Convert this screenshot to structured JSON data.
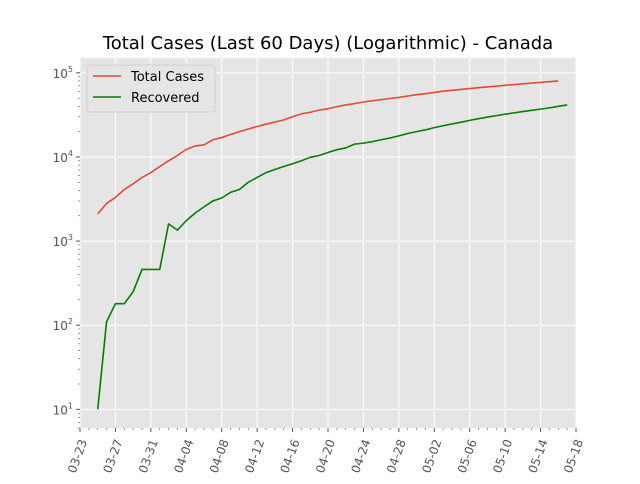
{
  "chart_data": {
    "type": "line",
    "title": "Total Cases (Last 60 Days) (Logarithmic) - Canada",
    "y_scale": "log",
    "ylim": [
      6,
      150000
    ],
    "y_ticks": [
      {
        "value": 10,
        "base": "10",
        "exp": "1"
      },
      {
        "value": 100,
        "base": "10",
        "exp": "2"
      },
      {
        "value": 1000,
        "base": "10",
        "exp": "3"
      },
      {
        "value": 10000,
        "base": "10",
        "exp": "4"
      },
      {
        "value": 100000,
        "base": "10",
        "exp": "5"
      }
    ],
    "xlim": [
      "2020-03-23",
      "2020-05-18"
    ],
    "x_ticks": [
      "03-23",
      "03-27",
      "03-31",
      "04-04",
      "04-08",
      "04-12",
      "04-16",
      "04-20",
      "04-24",
      "04-28",
      "05-02",
      "05-06",
      "05-10",
      "05-14",
      "05-18"
    ],
    "x_tick_dates": [
      "2020-03-23",
      "2020-03-27",
      "2020-03-31",
      "2020-04-04",
      "2020-04-08",
      "2020-04-12",
      "2020-04-16",
      "2020-04-20",
      "2020-04-24",
      "2020-04-28",
      "2020-05-02",
      "2020-05-06",
      "2020-05-10",
      "2020-05-14",
      "2020-05-18"
    ],
    "grid": true,
    "legend": "top-left",
    "series": [
      {
        "name": "Total Cases",
        "color": "#e24a33",
        "points": [
          [
            "2020-03-25",
            2100
          ],
          [
            "2020-03-26",
            2800
          ],
          [
            "2020-03-27",
            3300
          ],
          [
            "2020-03-28",
            4100
          ],
          [
            "2020-03-29",
            4800
          ],
          [
            "2020-03-30",
            5700
          ],
          [
            "2020-03-31",
            6500
          ],
          [
            "2020-04-01",
            7700
          ],
          [
            "2020-04-02",
            9000
          ],
          [
            "2020-04-03",
            10400
          ],
          [
            "2020-04-04",
            12300
          ],
          [
            "2020-04-05",
            13500
          ],
          [
            "2020-04-06",
            13900
          ],
          [
            "2020-04-07",
            16000
          ],
          [
            "2020-04-08",
            17000
          ],
          [
            "2020-04-09",
            18500
          ],
          [
            "2020-04-10",
            20000
          ],
          [
            "2020-04-11",
            21500
          ],
          [
            "2020-04-12",
            23000
          ],
          [
            "2020-04-13",
            24500
          ],
          [
            "2020-04-14",
            26000
          ],
          [
            "2020-04-15",
            27500
          ],
          [
            "2020-04-16",
            30000
          ],
          [
            "2020-04-17",
            32500
          ],
          [
            "2020-04-18",
            34000
          ],
          [
            "2020-04-19",
            36000
          ],
          [
            "2020-04-20",
            37500
          ],
          [
            "2020-04-21",
            39500
          ],
          [
            "2020-04-22",
            41500
          ],
          [
            "2020-04-23",
            43000
          ],
          [
            "2020-04-24",
            45000
          ],
          [
            "2020-04-25",
            46500
          ],
          [
            "2020-04-26",
            48000
          ],
          [
            "2020-04-27",
            49500
          ],
          [
            "2020-04-28",
            51000
          ],
          [
            "2020-04-29",
            53000
          ],
          [
            "2020-04-30",
            55000
          ],
          [
            "2020-05-01",
            56500
          ],
          [
            "2020-05-02",
            58500
          ],
          [
            "2020-05-03",
            60500
          ],
          [
            "2020-05-04",
            62000
          ],
          [
            "2020-05-05",
            63500
          ],
          [
            "2020-05-06",
            65000
          ],
          [
            "2020-05-07",
            66500
          ],
          [
            "2020-05-08",
            68000
          ],
          [
            "2020-05-09",
            69500
          ],
          [
            "2020-05-10",
            71000
          ],
          [
            "2020-05-11",
            72500
          ],
          [
            "2020-05-12",
            74000
          ],
          [
            "2020-05-13",
            75500
          ],
          [
            "2020-05-14",
            77000
          ],
          [
            "2020-05-15",
            78500
          ],
          [
            "2020-05-16",
            80000
          ]
        ]
      },
      {
        "name": "Recovered",
        "color": "#008000",
        "points": [
          [
            "2020-03-25",
            10
          ],
          [
            "2020-03-26",
            110
          ],
          [
            "2020-03-27",
            180
          ],
          [
            "2020-03-28",
            180
          ],
          [
            "2020-03-29",
            250
          ],
          [
            "2020-03-30",
            460
          ],
          [
            "2020-03-31",
            460
          ],
          [
            "2020-04-01",
            460
          ],
          [
            "2020-04-02",
            1600
          ],
          [
            "2020-04-03",
            1350
          ],
          [
            "2020-04-04",
            1750
          ],
          [
            "2020-04-05",
            2150
          ],
          [
            "2020-04-06",
            2550
          ],
          [
            "2020-04-07",
            3000
          ],
          [
            "2020-04-08",
            3250
          ],
          [
            "2020-04-09",
            3800
          ],
          [
            "2020-04-10",
            4100
          ],
          [
            "2020-04-11",
            5000
          ],
          [
            "2020-04-12",
            5700
          ],
          [
            "2020-04-13",
            6500
          ],
          [
            "2020-04-14",
            7100
          ],
          [
            "2020-04-15",
            7700
          ],
          [
            "2020-04-16",
            8300
          ],
          [
            "2020-04-17",
            9000
          ],
          [
            "2020-04-18",
            9900
          ],
          [
            "2020-04-19",
            10400
          ],
          [
            "2020-04-20",
            11300
          ],
          [
            "2020-04-21",
            12200
          ],
          [
            "2020-04-22",
            12800
          ],
          [
            "2020-04-23",
            14200
          ],
          [
            "2020-04-24",
            14600
          ],
          [
            "2020-04-25",
            15200
          ],
          [
            "2020-04-26",
            16000
          ],
          [
            "2020-04-27",
            16800
          ],
          [
            "2020-04-28",
            17800
          ],
          [
            "2020-04-29",
            19000
          ],
          [
            "2020-04-30",
            20000
          ],
          [
            "2020-05-01",
            21000
          ],
          [
            "2020-05-02",
            22300
          ],
          [
            "2020-05-03",
            23500
          ],
          [
            "2020-05-04",
            24700
          ],
          [
            "2020-05-05",
            25800
          ],
          [
            "2020-05-06",
            27200
          ],
          [
            "2020-05-07",
            28500
          ],
          [
            "2020-05-08",
            29800
          ],
          [
            "2020-05-09",
            31000
          ],
          [
            "2020-05-10",
            32200
          ],
          [
            "2020-05-11",
            33400
          ],
          [
            "2020-05-12",
            34600
          ],
          [
            "2020-05-13",
            35800
          ],
          [
            "2020-05-14",
            37000
          ],
          [
            "2020-05-15",
            38300
          ],
          [
            "2020-05-16",
            40000
          ],
          [
            "2020-05-17",
            41500
          ]
        ]
      }
    ]
  },
  "colors": {
    "plot_background": "#e5e5e5",
    "grid": "#ffffff",
    "tick_label": "#555555"
  }
}
